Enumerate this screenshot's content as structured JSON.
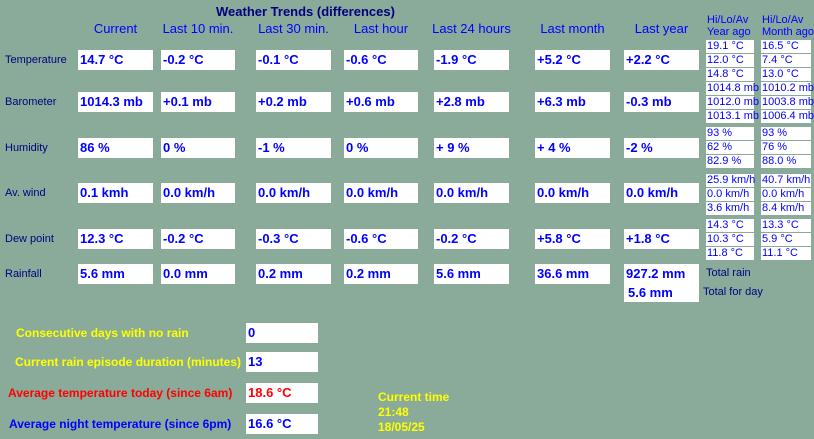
{
  "title": "Weather Trends (differences)",
  "columns": [
    "Current",
    "Last 10 min.",
    "Last 30 min.",
    "Last hour",
    "Last 24 hours",
    "Last month",
    "Last year"
  ],
  "rows": [
    {
      "label": "Temperature",
      "values": [
        "14.7 °C",
        "-0.2 °C",
        "-0.1 °C",
        "-0.6 °C",
        "-1.9 °C",
        "+5.2 °C",
        "+2.2 °C"
      ],
      "year_ago": [
        "19.1 °C",
        "12.0 °C",
        "14.8 °C"
      ],
      "month_ago": [
        "16.5 °C",
        "7.4 °C",
        "13.0 °C"
      ]
    },
    {
      "label": "Barometer",
      "values": [
        "1014.3 mb",
        "+0.1 mb",
        "+0.2 mb",
        "+0.6 mb",
        "+2.8 mb",
        "+6.3 mb",
        "-0.3 mb"
      ],
      "year_ago": [
        "1014.8 mb",
        "1012.0 mb",
        "1013.1 mb"
      ],
      "month_ago": [
        "1010.2 mb",
        "1003.8 mb",
        "1006.4 mb"
      ]
    },
    {
      "label": "Humidity",
      "values": [
        "86 %",
        " 0 %",
        "-1 %",
        " 0 %",
        "+ 9 %",
        "+ 4 %",
        "-2 %"
      ],
      "year_ago": [
        "93 %",
        "62 %",
        "82.9 %"
      ],
      "month_ago": [
        "93 %",
        "76 %",
        "88.0 %"
      ]
    },
    {
      "label": "Av. wind",
      "values": [
        "0.1 kmh",
        "0.0 km/h",
        "0.0 km/h",
        "0.0 km/h",
        "0.0 km/h",
        "0.0 km/h",
        "0.0 km/h"
      ],
      "year_ago": [
        "25.9 km/h",
        "0.0 km/h",
        "3.6 km/h"
      ],
      "month_ago": [
        "40.7 km/h",
        "0.0 km/h",
        "8.4 km/h"
      ]
    },
    {
      "label": "Dew point",
      "values": [
        "12.3 °C",
        "-0.2 °C",
        "-0.3 °C",
        "-0.6 °C",
        "-0.2 °C",
        "+5.8 °C",
        "+1.8 °C"
      ],
      "year_ago": [
        "14.3 °C",
        "10.3 °C",
        "11.8 °C"
      ],
      "month_ago": [
        "13.3 °C",
        "5.9 °C",
        "11.1 °C"
      ]
    },
    {
      "label": "Rainfall",
      "values": [
        "5.6 mm",
        "0.0 mm",
        "0.2 mm",
        "0.2 mm",
        "5.6 mm",
        "36.6 mm",
        "927.2 mm"
      ],
      "total_for_day": "5.6 mm"
    }
  ],
  "year_ago_header": [
    "Hi/Lo/Av",
    "Year ago"
  ],
  "month_ago_header": [
    "Hi/Lo/Av",
    "Month ago"
  ],
  "total_rain_label": "Total rain",
  "total_for_day_label": "Total for day",
  "bottom": [
    {
      "label": "Consecutive days with no rain",
      "value": "0",
      "color": "#ffff00",
      "value_color": "#0000ff"
    },
    {
      "label": "Current rain episode duration (minutes)",
      "value": "13",
      "color": "#ffff00",
      "value_color": "#0000ff"
    },
    {
      "label": "Average temperature today (since 6am)",
      "value": "18.6 °C",
      "color": "#ff0000",
      "value_color": "#ff0000"
    },
    {
      "label": "Average night temperature (since 6pm)",
      "value": "16.6 °C",
      "color": "#0000ff",
      "value_color": "#0000ff"
    }
  ],
  "current_time": {
    "label": "Current time",
    "time": "21:48",
    "date": "18/05/25"
  }
}
